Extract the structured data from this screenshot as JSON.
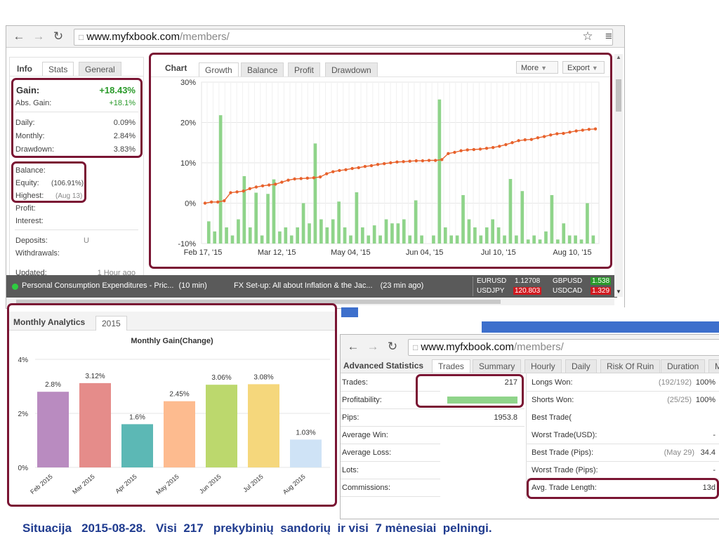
{
  "top_browser": {
    "url_host": "www.myfxbook.com",
    "url_path": "/members/",
    "info_tabs": [
      "Info",
      "Stats",
      "General"
    ],
    "gain": {
      "label": "Gain:",
      "value": "+18.43%"
    },
    "abs_gain": {
      "label": "Abs. Gain:",
      "value": "+18.1%"
    },
    "daily": {
      "label": "Daily:",
      "value": "0.09%"
    },
    "monthly": {
      "label": "Monthly:",
      "value": "2.84%"
    },
    "drawdown": {
      "label": "Drawdown:",
      "value": "3.83%"
    },
    "balance": {
      "label": "Balance:"
    },
    "equity": {
      "label": "Equity:",
      "value": "(106.91%)"
    },
    "highest": {
      "label": "Highest:",
      "value": "(Aug 13)"
    },
    "profit": {
      "label": "Profit:"
    },
    "interest": {
      "label": "Interest:"
    },
    "deposits": {
      "label": "Deposits:",
      "value": "U"
    },
    "withdrawals": {
      "label": "Withdrawals:"
    },
    "updated": {
      "label": "Updated:",
      "value": "1 Hour ago"
    },
    "chart_tabs": [
      "Chart",
      "Growth",
      "Balance",
      "Profit",
      "Drawdown"
    ],
    "more_label": "More",
    "export_label": "Export",
    "news": [
      {
        "text": "Personal Consumption Expenditures - Pric...",
        "time": "(10 min)"
      },
      {
        "text": "FX Set-up: All about Inflation & the Jac...",
        "time": "(23 min ago)"
      }
    ],
    "tickers": [
      {
        "pair": "EURUSD",
        "price": "1.12708"
      },
      {
        "pair": "GBPUSD",
        "price": "1.538"
      },
      {
        "pair": "USDJPY",
        "price": "120.803"
      },
      {
        "pair": "USDCAD",
        "price": "1.329"
      }
    ]
  },
  "monthly_panel": {
    "tab_title": "Monthly Analytics",
    "tab_year": "2015"
  },
  "bottom_browser": {
    "url_host": "www.myfxbook.com",
    "url_path": "/members/",
    "tabs": [
      "Advanced Statistics",
      "Trades",
      "Summary",
      "Hourly",
      "Daily",
      "Risk Of Ruin",
      "Duration",
      "M"
    ],
    "left_rows": [
      {
        "label": "Trades:",
        "value": "217"
      },
      {
        "label": "Profitability:",
        "value": ""
      },
      {
        "label": "Pips:",
        "value": "1953.8"
      },
      {
        "label": "Average Win:",
        "value": ""
      },
      {
        "label": "Average Loss:",
        "value": ""
      },
      {
        "label": "Lots:",
        "value": ""
      },
      {
        "label": "Commissions:",
        "value": ""
      }
    ],
    "right_rows": [
      {
        "label": "Longs Won:",
        "detail": "(192/192)",
        "value": "100%"
      },
      {
        "label": "Shorts Won:",
        "detail": "(25/25)",
        "value": "100%"
      },
      {
        "label": "Best Trade(",
        "detail": "",
        "value": ""
      },
      {
        "label": "Worst Trade(USD):",
        "detail": "",
        "value": "-"
      },
      {
        "label": "Best Trade (Pips):",
        "detail": "(May 29)",
        "value": "34.4"
      },
      {
        "label": "Worst Trade (Pips):",
        "detail": "",
        "value": "-"
      },
      {
        "label": "Avg. Trade Length:",
        "detail": "",
        "value": "13d"
      }
    ],
    "profitability_fraction": 1.0
  },
  "caption": "Situacija   2015-08-28.   Visi  217   prekybinių  sandorių  ir visi  7 mėnesiai  pelningi.",
  "colors": {
    "highlight": "#7a1533",
    "green_text": "#2a9a2a",
    "bar_green": "#8fd48a",
    "line_orange": "#e8622c",
    "news_bar": "#5a5a5a"
  },
  "chart_data": [
    {
      "type": "bar+line",
      "title": "",
      "ylim": [
        -10,
        30
      ],
      "y_ticks": [
        "30%",
        "20%",
        "10%",
        "0%",
        "-10%"
      ],
      "x_ticks": [
        "Feb 17, '15",
        "Mar 12, '15",
        "May 04, '15",
        "Jun 04, '15",
        "Jul 10, '15",
        "Aug 10, '15"
      ],
      "grid": true,
      "series": [
        {
          "kind": "bar",
          "values": [
            -4.5,
            -7,
            21.8,
            -6,
            -8,
            -4,
            6.7,
            -6,
            2.6,
            -8,
            2.3,
            5.9,
            -7,
            -6,
            -8,
            -6,
            0,
            -5,
            14.8,
            -4,
            -6,
            -4,
            0.4,
            -6,
            -8,
            2.7,
            -6,
            -8,
            -5.5,
            -8,
            -4,
            -5,
            -5,
            -4,
            -8,
            0.7,
            -8,
            -10,
            -8,
            25.7,
            -6,
            -8,
            -8,
            2,
            -4,
            -6,
            -8,
            -6,
            -4,
            -6,
            -8,
            6,
            -8,
            3,
            -9,
            -8,
            -9,
            -7,
            2,
            -9,
            -5,
            -8,
            -8,
            -9,
            0,
            -8
          ],
          "color": "#8fd48a"
        },
        {
          "kind": "line",
          "values": [
            0,
            0.3,
            0.3,
            0.6,
            2.6,
            2.8,
            3.0,
            3.6,
            4.0,
            4.3,
            4.5,
            4.7,
            5.2,
            5.7,
            6.0,
            6.1,
            6.2,
            6.3,
            6.5,
            7.3,
            7.8,
            8.1,
            8.3,
            8.6,
            8.8,
            9.1,
            9.3,
            9.6,
            9.8,
            10.0,
            10.2,
            10.3,
            10.4,
            10.5,
            10.5,
            10.6,
            10.6,
            10.8,
            12.3,
            12.6,
            13.0,
            13.2,
            13.3,
            13.4,
            13.6,
            13.8,
            14.1,
            14.5,
            15.0,
            15.5,
            15.7,
            15.8,
            16.2,
            16.5,
            16.9,
            17.2,
            17.3,
            17.6,
            17.9,
            18.1,
            18.3,
            18.4
          ],
          "color": "#e8622c"
        }
      ]
    },
    {
      "type": "bar",
      "title": "Monthly Gain(Change)",
      "categories": [
        "Feb 2015",
        "Mar 2015",
        "Apr 2015",
        "May 2015",
        "Jun 2015",
        "Jul 2015",
        "Aug 2015"
      ],
      "values": [
        2.8,
        3.12,
        1.6,
        2.45,
        3.06,
        3.08,
        1.03
      ],
      "data_labels": [
        "2.8%",
        "3.12%",
        "1.6%",
        "2.45%",
        "3.06%",
        "3.08%",
        "1.03%"
      ],
      "colors": [
        "#b98bc0",
        "#e58c8a",
        "#5cb8b5",
        "#fdbb8f",
        "#bcd86d",
        "#f5d77c",
        "#cfe3f6"
      ],
      "y_ticks": [
        "4%",
        "2%",
        "0%"
      ],
      "ylim": [
        0,
        4
      ]
    }
  ]
}
